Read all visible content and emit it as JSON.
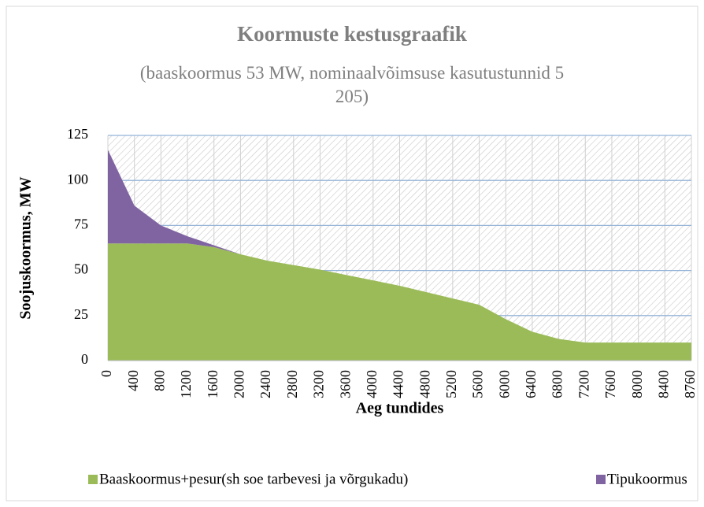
{
  "chart_data": {
    "type": "stacked_area",
    "title": "Koormuste kestusgraafik",
    "subtitle": "(baaskoormus 53 MW, nominaalvõimsuse kasutustunnid 5 205)",
    "x_label": "Aeg tundides",
    "y_label": "Soojuskoormus, MW",
    "categories": [
      "0",
      "400",
      "800",
      "1200",
      "1600",
      "2000",
      "2400",
      "2800",
      "3200",
      "3600",
      "4000",
      "4400",
      "4800",
      "5200",
      "5600",
      "6000",
      "6400",
      "6800",
      "7200",
      "7600",
      "8000",
      "8400",
      "8760"
    ],
    "series": [
      {
        "name": "Baaskoormus+pesur(sh soe tarbevesi ja võrgukadu)",
        "color": "#9bbb59",
        "values": [
          65,
          65,
          65,
          65,
          63,
          59,
          55.5,
          53,
          50.5,
          47.5,
          44.5,
          41.5,
          38,
          34.5,
          31,
          23,
          16,
          12,
          10,
          10,
          10,
          10,
          10
        ]
      },
      {
        "name": "Tipukoormus",
        "color": "#8064a2",
        "values": [
          52,
          21,
          10,
          4,
          1,
          0,
          0,
          0,
          0,
          0,
          0,
          0,
          0,
          0,
          0,
          0,
          0,
          0,
          0,
          0,
          0,
          0,
          0
        ]
      }
    ],
    "ylim": [
      0,
      125
    ],
    "yticks": [
      0,
      25,
      50,
      75,
      100,
      125
    ],
    "grid": true,
    "legend": "bottom"
  }
}
